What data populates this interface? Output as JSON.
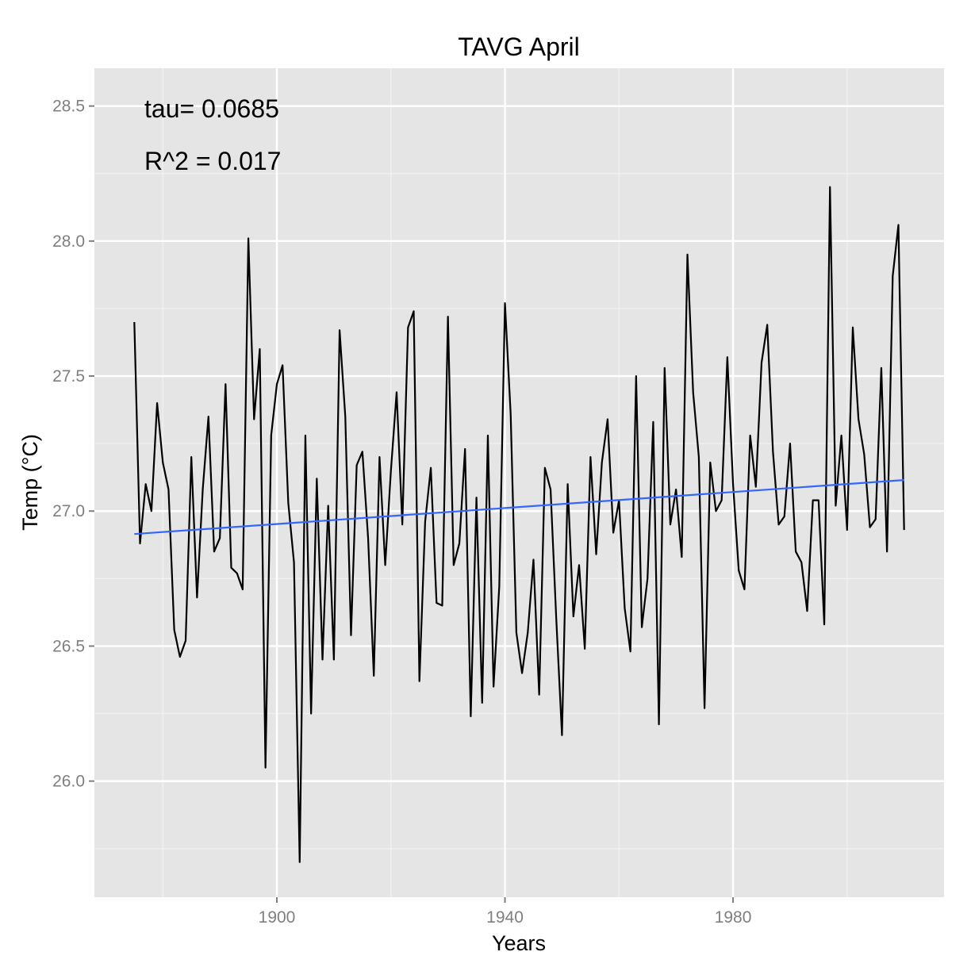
{
  "chart_data": {
    "type": "line",
    "title": "TAVG April",
    "xlabel": "Years",
    "ylabel": "Temp (°C)",
    "xlim": [
      1868,
      2017
    ],
    "ylim": [
      25.57,
      28.64
    ],
    "x_ticks": [
      1900,
      1940,
      1980
    ],
    "x_tick_labels": [
      "1900",
      "1940",
      "1980"
    ],
    "y_ticks": [
      26.0,
      26.5,
      27.0,
      27.5,
      28.0,
      28.5
    ],
    "y_tick_labels": [
      "26.0",
      "26.5",
      "27.0",
      "27.5",
      "28.0",
      "28.5"
    ],
    "grid": true,
    "annotations": [
      "tau= 0.0685",
      "R^2 =  0.017"
    ],
    "colors": {
      "panel": "#e5e5e5",
      "grid": "#ffffff",
      "series": "#000000",
      "trend": "#3366ff"
    },
    "series": [
      {
        "x": [
          1875,
          1876,
          1877,
          1878,
          1879,
          1880,
          1881,
          1882,
          1883,
          1884,
          1885,
          1886,
          1887,
          1888,
          1889,
          1890,
          1891,
          1892,
          1893,
          1894,
          1895,
          1896,
          1897,
          1898,
          1899,
          1900,
          1901,
          1902,
          1903,
          1904,
          1905,
          1906,
          1907,
          1908,
          1909,
          1910,
          1911,
          1912,
          1913,
          1914,
          1915,
          1916,
          1917,
          1918,
          1919,
          1920,
          1921,
          1922,
          1923,
          1924,
          1925,
          1926,
          1927,
          1928,
          1929,
          1930,
          1931,
          1932,
          1933,
          1934,
          1935,
          1936,
          1937,
          1938,
          1939,
          1940,
          1941,
          1942,
          1943,
          1944,
          1945,
          1946,
          1947,
          1948,
          1949,
          1950,
          1951,
          1952,
          1953,
          1954,
          1955,
          1956,
          1957,
          1958,
          1959,
          1960,
          1961,
          1962,
          1963,
          1964,
          1965,
          1966,
          1967,
          1968,
          1969,
          1970,
          1971,
          1972,
          1973,
          1974,
          1975,
          1976,
          1977,
          1978,
          1979,
          1980,
          1981,
          1982,
          1983,
          1984,
          1985,
          1986,
          1987,
          1988,
          1989,
          1990,
          1991,
          1992,
          1993,
          1994,
          1995,
          1996,
          1997,
          1998,
          1999,
          2000,
          2001,
          2002,
          2003,
          2004,
          2005,
          2006,
          2007,
          2008,
          2009,
          2010
        ],
        "values": [
          27.7,
          26.88,
          27.1,
          27.0,
          27.4,
          27.18,
          27.08,
          26.56,
          26.46,
          26.52,
          27.2,
          26.68,
          27.08,
          27.35,
          26.85,
          26.9,
          27.47,
          26.79,
          26.77,
          26.71,
          28.01,
          27.34,
          27.6,
          26.05,
          27.28,
          27.47,
          27.54,
          27.03,
          26.81,
          25.7,
          27.28,
          26.25,
          27.12,
          26.45,
          27.02,
          26.45,
          27.67,
          27.35,
          26.54,
          27.17,
          27.22,
          26.9,
          26.39,
          27.2,
          26.8,
          27.15,
          27.44,
          26.95,
          27.68,
          27.74,
          26.37,
          26.96,
          27.16,
          26.66,
          26.65,
          27.72,
          26.8,
          26.88,
          27.23,
          26.24,
          27.05,
          26.29,
          27.28,
          26.35,
          26.72,
          27.77,
          27.36,
          26.55,
          26.4,
          26.55,
          26.82,
          26.32,
          27.16,
          27.08,
          26.6,
          26.17,
          27.1,
          26.61,
          26.8,
          26.49,
          27.2,
          26.84,
          27.18,
          27.34,
          26.92,
          27.04,
          26.64,
          26.48,
          27.5,
          26.57,
          26.75,
          27.33,
          26.21,
          27.53,
          26.95,
          27.08,
          26.83,
          27.95,
          27.44,
          27.2,
          26.27,
          27.18,
          27.0,
          27.04,
          27.57,
          27.1,
          26.78,
          26.71,
          27.28,
          27.09,
          27.55,
          27.69,
          27.22,
          26.95,
          26.98,
          27.25,
          26.85,
          26.81,
          26.63,
          27.04,
          27.04,
          26.58,
          28.2,
          27.02,
          27.28,
          26.93,
          27.68,
          27.34,
          27.21,
          26.94,
          26.97,
          27.53,
          26.85,
          27.87,
          28.06,
          26.93
        ]
      },
      {
        "x": [
          1875,
          2010
        ],
        "values": [
          26.915,
          27.115
        ]
      }
    ]
  }
}
